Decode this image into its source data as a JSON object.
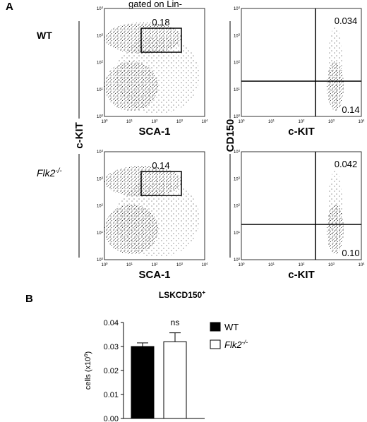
{
  "panel_a": {
    "label": "A",
    "title": "gated on Lin-",
    "rows": [
      {
        "name": "WT"
      },
      {
        "name": "Flk2",
        "name_sup": "-/-"
      }
    ],
    "y_labels": [
      "c-KIT",
      "CD150"
    ],
    "log_ticks": [
      {
        "base": "10",
        "exp": "0"
      },
      {
        "base": "10",
        "exp": "1"
      },
      {
        "base": "10",
        "exp": "2"
      },
      {
        "base": "10",
        "exp": "3"
      },
      {
        "base": "10",
        "exp": "4"
      }
    ],
    "plots": [
      {
        "x_label": "SCA-1",
        "gate": "0.18"
      },
      {
        "x_label": "c-KIT",
        "upper": "0.034",
        "lower": "0.14"
      },
      {
        "x_label": "SCA-1",
        "gate": "0.14"
      },
      {
        "x_label": "c-KIT",
        "upper": "0.042",
        "lower": "0.10"
      }
    ]
  },
  "panel_b": {
    "label": "B"
  },
  "chart_data": {
    "type": "bar",
    "title": "LSKCD150",
    "title_sup": "+",
    "y_label": "cells (x10",
    "y_label_sup": "6",
    "y_label_end": ")",
    "ylim": [
      0,
      0.04
    ],
    "yticks": [
      {
        "value": 0,
        "label": "0.00"
      },
      0.01,
      0.02,
      0.03,
      0.04
    ],
    "annotation": "ns",
    "series": [
      {
        "name": "WT",
        "color": "#000000",
        "values": [
          0.03
        ],
        "errors": [
          0.0015
        ]
      },
      {
        "name": "Flk2",
        "name_sup": "-/-",
        "color": "#ffffff",
        "values": [
          0.032
        ],
        "errors": [
          0.0037
        ]
      }
    ]
  }
}
